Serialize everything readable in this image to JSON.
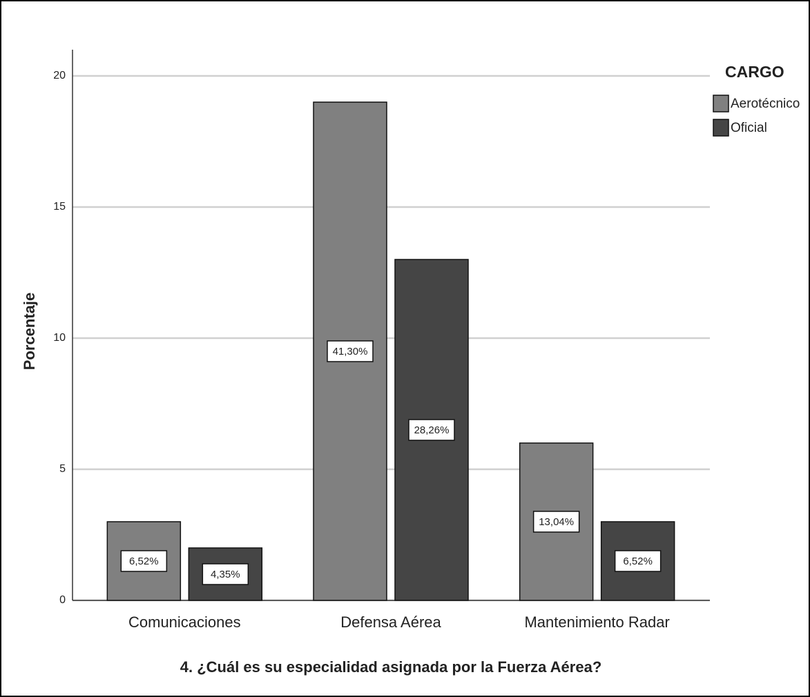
{
  "chart_data": {
    "type": "bar",
    "xlabel": "4. ¿Cuál es su especialidad asignada por la Fuerza Aérea?",
    "ylabel": "Porcentaje",
    "categories": [
      "Comunicaciones",
      "Defensa Aérea",
      "Mantenimiento Radar"
    ],
    "legend_title": "CARGO",
    "legend": "top-right-outside",
    "grid": true,
    "series": [
      {
        "name": "Aerotécnico",
        "color": "#808080",
        "values": [
          3,
          19,
          6
        ],
        "data_labels": [
          "6,52%",
          "41,30%",
          "13,04%"
        ]
      },
      {
        "name": "Oficial",
        "color": "#454545",
        "values": [
          2,
          13,
          3
        ],
        "data_labels": [
          "4,35%",
          "28,26%",
          "6,52%"
        ]
      }
    ],
    "ylim": [
      0,
      21
    ],
    "yticks": [
      0,
      5,
      10,
      15,
      20
    ]
  }
}
